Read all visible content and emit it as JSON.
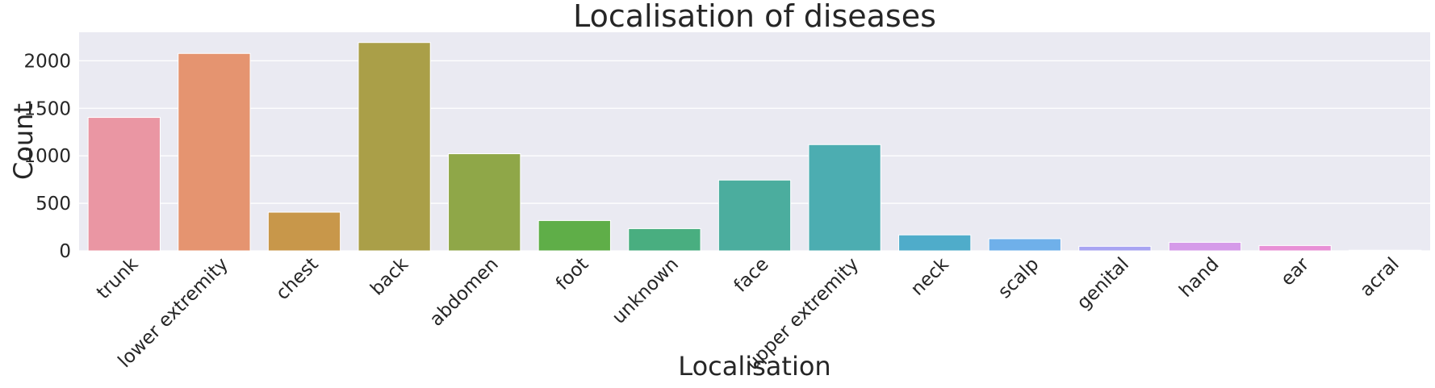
{
  "chart_data": {
    "type": "bar",
    "title": "Localisation of diseases",
    "xlabel": "Localisation",
    "ylabel": "Count",
    "ylim": [
      0,
      2300
    ],
    "yticks": [
      0,
      500,
      1000,
      1500,
      2000
    ],
    "grid": true,
    "legend": "none",
    "categories": [
      "trunk",
      "lower extremity",
      "chest",
      "back",
      "abdomen",
      "foot",
      "unknown",
      "face",
      "upper extremity",
      "neck",
      "scalp",
      "genital",
      "hand",
      "ear",
      "acral"
    ],
    "values": [
      1404,
      2077,
      407,
      2192,
      1022,
      319,
      234,
      745,
      1118,
      168,
      128,
      48,
      90,
      56,
      7
    ],
    "colors": [
      "#ea96a3",
      "#e59470",
      "#c8974a",
      "#aa9f48",
      "#8fa748",
      "#5fae48",
      "#49ae80",
      "#4bad9e",
      "#4cadb1",
      "#4facca",
      "#6fb0ea",
      "#a8a4f2",
      "#d59ae9",
      "#e890d6",
      "#e993bf"
    ]
  }
}
